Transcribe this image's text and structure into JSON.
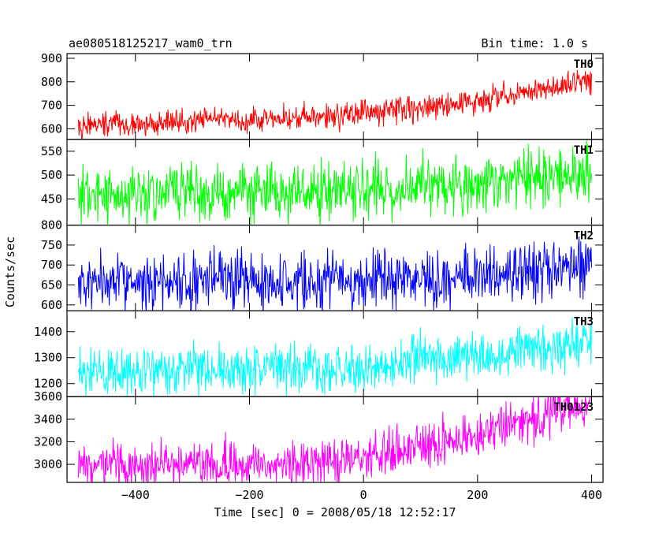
{
  "header": {
    "title": "ae080518125217_wam0_trn",
    "bin_time": "Bin time: 1.0 s"
  },
  "chart_data": {
    "type": "line",
    "xlabel": "Time [sec] 0 = 2008/05/18 12:52:17",
    "ylabel": "Counts/sec",
    "xlim": [
      -520,
      420
    ],
    "x_ticks": [
      -400,
      -200,
      0,
      200,
      400
    ],
    "x_tick_labels": [
      "−400",
      "−200",
      "0",
      "200",
      "400"
    ],
    "x_range": [
      -500,
      400
    ],
    "bin_time_s": 1.0,
    "grid": false,
    "series": [
      {
        "name": "TH0",
        "color": "#ff0000",
        "ylim": [
          555,
          920
        ],
        "y_ticks": [
          600,
          700,
          800,
          900
        ],
        "trend": [
          [
            -500,
            615
          ],
          [
            -100,
            650
          ],
          [
            0,
            665
          ],
          [
            200,
            720
          ],
          [
            400,
            810
          ]
        ],
        "noise": 60
      },
      {
        "name": "TH1",
        "color": "#00ff00",
        "ylim": [
          395,
          575
        ],
        "y_ticks": [
          450,
          500,
          550
        ],
        "trend": [
          [
            -500,
            458
          ],
          [
            0,
            470
          ],
          [
            200,
            485
          ],
          [
            400,
            508
          ]
        ],
        "noise": 68
      },
      {
        "name": "TH2",
        "color": "#0000ff",
        "ylim": [
          585,
          800
        ],
        "y_ticks": [
          600,
          650,
          700,
          750,
          800
        ],
        "y_tick_labels": [
          "600",
          "650",
          "700",
          "750",
          "800"
        ],
        "trend": [
          [
            -500,
            658
          ],
          [
            0,
            662
          ],
          [
            200,
            672
          ],
          [
            400,
            700
          ]
        ],
        "noise": 80
      },
      {
        "name": "TH3",
        "color": "#00ffff",
        "ylim": [
          1150,
          1480
        ],
        "y_ticks": [
          1200,
          1300,
          1400
        ],
        "trend": [
          [
            -500,
            1245
          ],
          [
            0,
            1265
          ],
          [
            200,
            1300
          ],
          [
            400,
            1360
          ]
        ],
        "noise": 105
      },
      {
        "name": "TH0123",
        "color": "#ff00ff",
        "ylim": [
          2840,
          3600
        ],
        "y_ticks": [
          3000,
          3200,
          3400,
          3600
        ],
        "trend": [
          [
            -500,
            2990
          ],
          [
            -100,
            3020
          ],
          [
            0,
            3060
          ],
          [
            200,
            3250
          ],
          [
            400,
            3560
          ]
        ],
        "noise": 220
      }
    ]
  }
}
